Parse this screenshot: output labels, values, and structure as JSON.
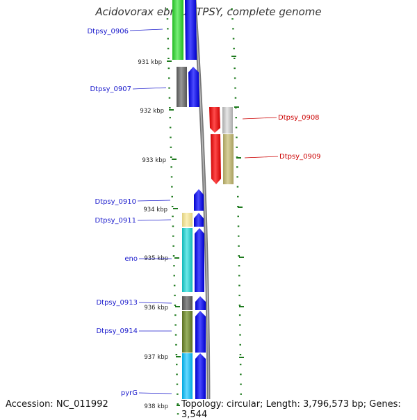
{
  "title": "Acidovorax ebreus TPSY, complete genome",
  "footer": {
    "accession": "Accession: NC_011992",
    "topology": "Topology: circular; Length: 3,796,573 bp; Genes: 3,544"
  },
  "ticks": [
    "931 kbp",
    "932 kbp",
    "933 kbp",
    "934 kbp",
    "935 kbp",
    "936 kbp",
    "937 kbp",
    "938 kbp"
  ],
  "genes_left": [
    {
      "name": "Dtpsy_0906",
      "color": "#1a1acc"
    },
    {
      "name": "Dtpsy_0907",
      "color": "#1a1acc"
    },
    {
      "name": "Dtpsy_0910",
      "color": "#1a1acc"
    },
    {
      "name": "Dtpsy_0911",
      "color": "#1a1acc"
    },
    {
      "name": "eno",
      "color": "#1a1acc"
    },
    {
      "name": "Dtpsy_0913",
      "color": "#1a1acc"
    },
    {
      "name": "Dtpsy_0914",
      "color": "#1a1acc"
    },
    {
      "name": "pyrG",
      "color": "#1a1acc"
    }
  ],
  "genes_right": [
    {
      "name": "Dtpsy_0908",
      "color": "#cc0000"
    },
    {
      "name": "Dtpsy_0909",
      "color": "#cc0000"
    }
  ],
  "colors": {
    "tick": "#1e7a1e",
    "blue": "#0000ee",
    "red": "#ee0000",
    "green": "#33cc33",
    "backbone": "#888888"
  }
}
